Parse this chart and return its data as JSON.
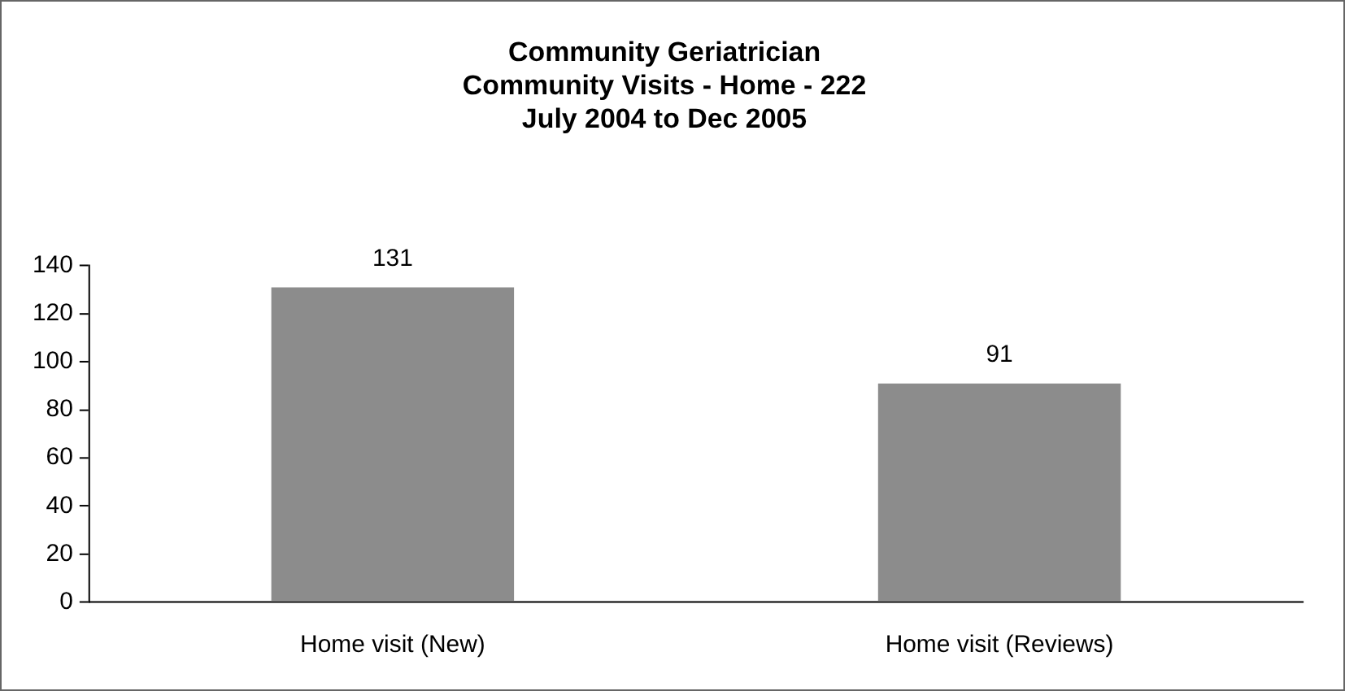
{
  "chart_data": {
    "type": "bar",
    "title": "Community Geriatrician\nCommunity Visits - Home - 222\nJuly 2004 to Dec 2005",
    "categories": [
      "Home visit (New)",
      "Home visit (Reviews)"
    ],
    "values": [
      131,
      91
    ],
    "color": "#8c8c8c",
    "ylim": [
      0,
      140
    ],
    "yticks": [
      0,
      20,
      40,
      60,
      80,
      100,
      120,
      140
    ],
    "grid": false,
    "legend": false,
    "data_labels": true
  }
}
